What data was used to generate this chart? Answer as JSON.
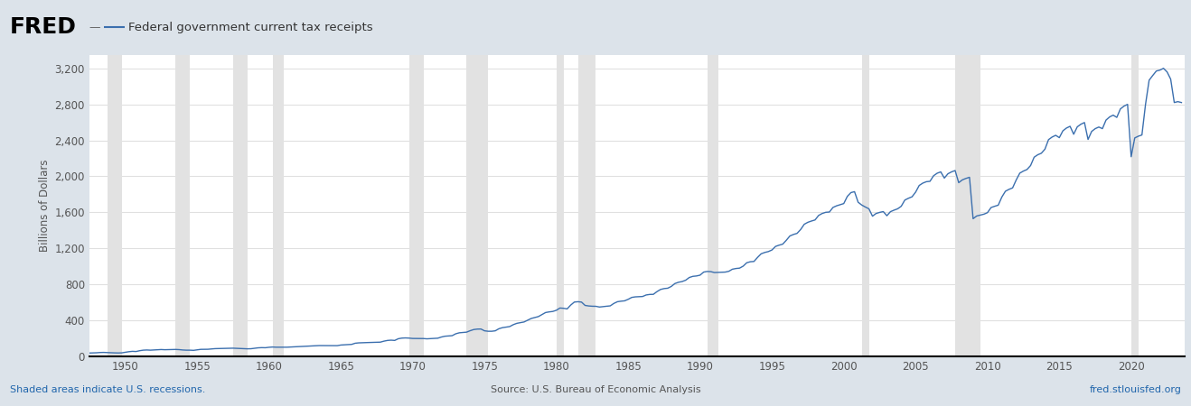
{
  "title": "Federal government current tax receipts",
  "ylabel": "Billions of Dollars",
  "yticks": [
    0,
    400,
    800,
    1200,
    1600,
    2000,
    2400,
    2800,
    3200
  ],
  "ylim": [
    0,
    3350
  ],
  "xticks": [
    1950,
    1955,
    1960,
    1965,
    1970,
    1975,
    1980,
    1985,
    1990,
    1995,
    2000,
    2005,
    2010,
    2015,
    2020
  ],
  "xlim": [
    1947.5,
    2023.75
  ],
  "background_color": "#dce3ea",
  "plot_bg_color": "#ffffff",
  "line_color": "#3b6fae",
  "grid_color": "#e0e0e0",
  "xaxis_line_color": "#000000",
  "recession_color": "#e2e2e2",
  "footer_text_left": "Shaded areas indicate U.S. recessions.",
  "footer_text_center": "Source: U.S. Bureau of Economic Analysis",
  "footer_text_right": "fred.stlouisfed.org",
  "footer_color": "#2166ac",
  "recession_bands": [
    [
      1948.75,
      1949.75
    ],
    [
      1953.5,
      1954.5
    ],
    [
      1957.5,
      1958.5
    ],
    [
      1960.25,
      1961.0
    ],
    [
      1969.75,
      1970.75
    ],
    [
      1973.75,
      1975.25
    ],
    [
      1980.0,
      1980.5
    ],
    [
      1981.5,
      1982.75
    ],
    [
      1990.5,
      1991.25
    ],
    [
      2001.25,
      2001.75
    ],
    [
      2007.75,
      2009.5
    ],
    [
      2020.0,
      2020.5
    ]
  ],
  "quarterly_years": [
    1947.0,
    1947.25,
    1947.5,
    1947.75,
    1948.0,
    1948.25,
    1948.5,
    1948.75,
    1949.0,
    1949.25,
    1949.5,
    1949.75,
    1950.0,
    1950.25,
    1950.5,
    1950.75,
    1951.0,
    1951.25,
    1951.5,
    1951.75,
    1952.0,
    1952.25,
    1952.5,
    1952.75,
    1953.0,
    1953.25,
    1953.5,
    1953.75,
    1954.0,
    1954.25,
    1954.5,
    1954.75,
    1955.0,
    1955.25,
    1955.5,
    1955.75,
    1956.0,
    1956.25,
    1956.5,
    1956.75,
    1957.0,
    1957.25,
    1957.5,
    1957.75,
    1958.0,
    1958.25,
    1958.5,
    1958.75,
    1959.0,
    1959.25,
    1959.5,
    1959.75,
    1960.0,
    1960.25,
    1960.5,
    1960.75,
    1961.0,
    1961.25,
    1961.5,
    1961.75,
    1962.0,
    1962.25,
    1962.5,
    1962.75,
    1963.0,
    1963.25,
    1963.5,
    1963.75,
    1964.0,
    1964.25,
    1964.5,
    1964.75,
    1965.0,
    1965.25,
    1965.5,
    1965.75,
    1966.0,
    1966.25,
    1966.5,
    1966.75,
    1967.0,
    1967.25,
    1967.5,
    1967.75,
    1968.0,
    1968.25,
    1968.5,
    1968.75,
    1969.0,
    1969.25,
    1969.5,
    1969.75,
    1970.0,
    1970.25,
    1970.5,
    1970.75,
    1971.0,
    1971.25,
    1971.5,
    1971.75,
    1972.0,
    1972.25,
    1972.5,
    1972.75,
    1973.0,
    1973.25,
    1973.5,
    1973.75,
    1974.0,
    1974.25,
    1974.5,
    1974.75,
    1975.0,
    1975.25,
    1975.5,
    1975.75,
    1976.0,
    1976.25,
    1976.5,
    1976.75,
    1977.0,
    1977.25,
    1977.5,
    1977.75,
    1978.0,
    1978.25,
    1978.5,
    1978.75,
    1979.0,
    1979.25,
    1979.5,
    1979.75,
    1980.0,
    1980.25,
    1980.5,
    1980.75,
    1981.0,
    1981.25,
    1981.5,
    1981.75,
    1982.0,
    1982.25,
    1982.5,
    1982.75,
    1983.0,
    1983.25,
    1983.5,
    1983.75,
    1984.0,
    1984.25,
    1984.5,
    1984.75,
    1985.0,
    1985.25,
    1985.5,
    1985.75,
    1986.0,
    1986.25,
    1986.5,
    1986.75,
    1987.0,
    1987.25,
    1987.5,
    1987.75,
    1988.0,
    1988.25,
    1988.5,
    1988.75,
    1989.0,
    1989.25,
    1989.5,
    1989.75,
    1990.0,
    1990.25,
    1990.5,
    1990.75,
    1991.0,
    1991.25,
    1991.5,
    1991.75,
    1992.0,
    1992.25,
    1992.5,
    1992.75,
    1993.0,
    1993.25,
    1993.5,
    1993.75,
    1994.0,
    1994.25,
    1994.5,
    1994.75,
    1995.0,
    1995.25,
    1995.5,
    1995.75,
    1996.0,
    1996.25,
    1996.5,
    1996.75,
    1997.0,
    1997.25,
    1997.5,
    1997.75,
    1998.0,
    1998.25,
    1998.5,
    1998.75,
    1999.0,
    1999.25,
    1999.5,
    1999.75,
    2000.0,
    2000.25,
    2000.5,
    2000.75,
    2001.0,
    2001.25,
    2001.5,
    2001.75,
    2002.0,
    2002.25,
    2002.5,
    2002.75,
    2003.0,
    2003.25,
    2003.5,
    2003.75,
    2004.0,
    2004.25,
    2004.5,
    2004.75,
    2005.0,
    2005.25,
    2005.5,
    2005.75,
    2006.0,
    2006.25,
    2006.5,
    2006.75,
    2007.0,
    2007.25,
    2007.5,
    2007.75,
    2008.0,
    2008.25,
    2008.5,
    2008.75,
    2009.0,
    2009.25,
    2009.5,
    2009.75,
    2010.0,
    2010.25,
    2010.5,
    2010.75,
    2011.0,
    2011.25,
    2011.5,
    2011.75,
    2012.0,
    2012.25,
    2012.5,
    2012.75,
    2013.0,
    2013.25,
    2013.5,
    2013.75,
    2014.0,
    2014.25,
    2014.5,
    2014.75,
    2015.0,
    2015.25,
    2015.5,
    2015.75,
    2016.0,
    2016.25,
    2016.5,
    2016.75,
    2017.0,
    2017.25,
    2017.5,
    2017.75,
    2018.0,
    2018.25,
    2018.5,
    2018.75,
    2019.0,
    2019.25,
    2019.5,
    2019.75,
    2020.0,
    2020.25,
    2020.5,
    2020.75,
    2021.0,
    2021.25,
    2021.5,
    2021.75,
    2022.0,
    2022.25,
    2022.5,
    2022.75,
    2023.0,
    2023.25,
    2023.5
  ],
  "quarterly_values": [
    34,
    37,
    38,
    40,
    41,
    44,
    45,
    43,
    42,
    40,
    39,
    40,
    47,
    53,
    57,
    55,
    64,
    70,
    72,
    70,
    72,
    74,
    77,
    75,
    76,
    78,
    78,
    76,
    72,
    70,
    70,
    68,
    73,
    79,
    80,
    80,
    84,
    87,
    88,
    88,
    89,
    91,
    92,
    90,
    87,
    85,
    85,
    86,
    91,
    96,
    98,
    97,
    102,
    105,
    103,
    103,
    102,
    103,
    105,
    107,
    109,
    112,
    113,
    114,
    117,
    120,
    121,
    121,
    121,
    120,
    120,
    120,
    127,
    130,
    132,
    134,
    147,
    151,
    153,
    154,
    155,
    157,
    158,
    159,
    170,
    178,
    181,
    178,
    197,
    204,
    206,
    204,
    200,
    200,
    200,
    199,
    196,
    198,
    200,
    203,
    216,
    225,
    228,
    231,
    252,
    263,
    267,
    270,
    286,
    299,
    304,
    305,
    285,
    280,
    280,
    285,
    308,
    320,
    326,
    332,
    353,
    368,
    375,
    383,
    403,
    422,
    432,
    443,
    466,
    488,
    495,
    500,
    513,
    538,
    535,
    528,
    571,
    604,
    608,
    604,
    567,
    561,
    558,
    557,
    549,
    554,
    558,
    562,
    589,
    608,
    614,
    618,
    635,
    656,
    662,
    664,
    666,
    683,
    689,
    690,
    720,
    744,
    754,
    758,
    778,
    810,
    824,
    832,
    847,
    877,
    890,
    894,
    903,
    937,
    944,
    942,
    932,
    934,
    936,
    937,
    946,
    969,
    977,
    981,
    1003,
    1041,
    1052,
    1055,
    1100,
    1140,
    1155,
    1165,
    1182,
    1222,
    1236,
    1247,
    1290,
    1338,
    1355,
    1367,
    1410,
    1468,
    1490,
    1504,
    1516,
    1566,
    1588,
    1601,
    1604,
    1655,
    1673,
    1685,
    1698,
    1778,
    1820,
    1830,
    1713,
    1682,
    1660,
    1640,
    1558,
    1588,
    1600,
    1609,
    1563,
    1608,
    1625,
    1640,
    1668,
    1737,
    1757,
    1773,
    1825,
    1899,
    1925,
    1941,
    1945,
    2007,
    2035,
    2050,
    1981,
    2029,
    2050,
    2065,
    1930,
    1961,
    1977,
    1990,
    1530,
    1560,
    1570,
    1580,
    1597,
    1654,
    1668,
    1680,
    1770,
    1835,
    1856,
    1872,
    1960,
    2036,
    2059,
    2076,
    2120,
    2213,
    2240,
    2257,
    2302,
    2408,
    2437,
    2456,
    2430,
    2506,
    2537,
    2556,
    2468,
    2550,
    2579,
    2598,
    2410,
    2499,
    2530,
    2548,
    2530,
    2625,
    2660,
    2680,
    2655,
    2749,
    2780,
    2800,
    2218,
    2427,
    2446,
    2460,
    2800,
    3068,
    3120,
    3170,
    3180,
    3200,
    3160,
    3080,
    2820,
    2830,
    2820
  ]
}
